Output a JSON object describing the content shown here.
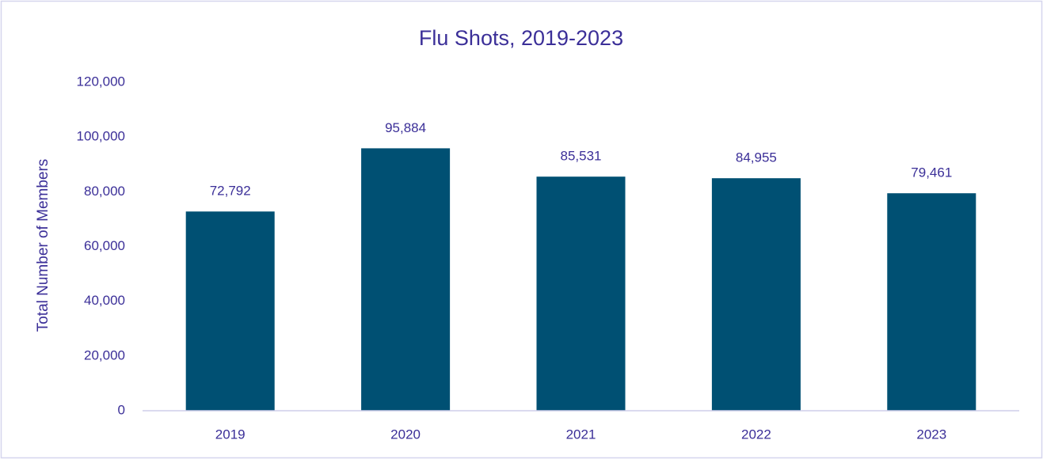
{
  "chart_data": {
    "type": "bar",
    "title": "Flu Shots, 2019-2023",
    "y_label": "Total Number of Members",
    "categories": [
      "2019",
      "2020",
      "2021",
      "2022",
      "2023"
    ],
    "values": [
      72792,
      95884,
      85531,
      84955,
      79461
    ],
    "value_labels": [
      "72,792",
      "95,884",
      "85,531",
      "84,955",
      "79,461"
    ],
    "color": "#005073",
    "ylim": [
      0,
      120000
    ],
    "yticks": [
      0,
      {
        "value": 20000,
        "label": "20,000"
      },
      {
        "value": 40000,
        "label": "40,000"
      },
      {
        "value": 60000,
        "label": "60,000"
      },
      {
        "value": 80000,
        "label": "80,000"
      },
      {
        "value": 100000,
        "label": "100,000"
      },
      {
        "value": 120000,
        "label": "120,000"
      }
    ],
    "grid": false
  }
}
